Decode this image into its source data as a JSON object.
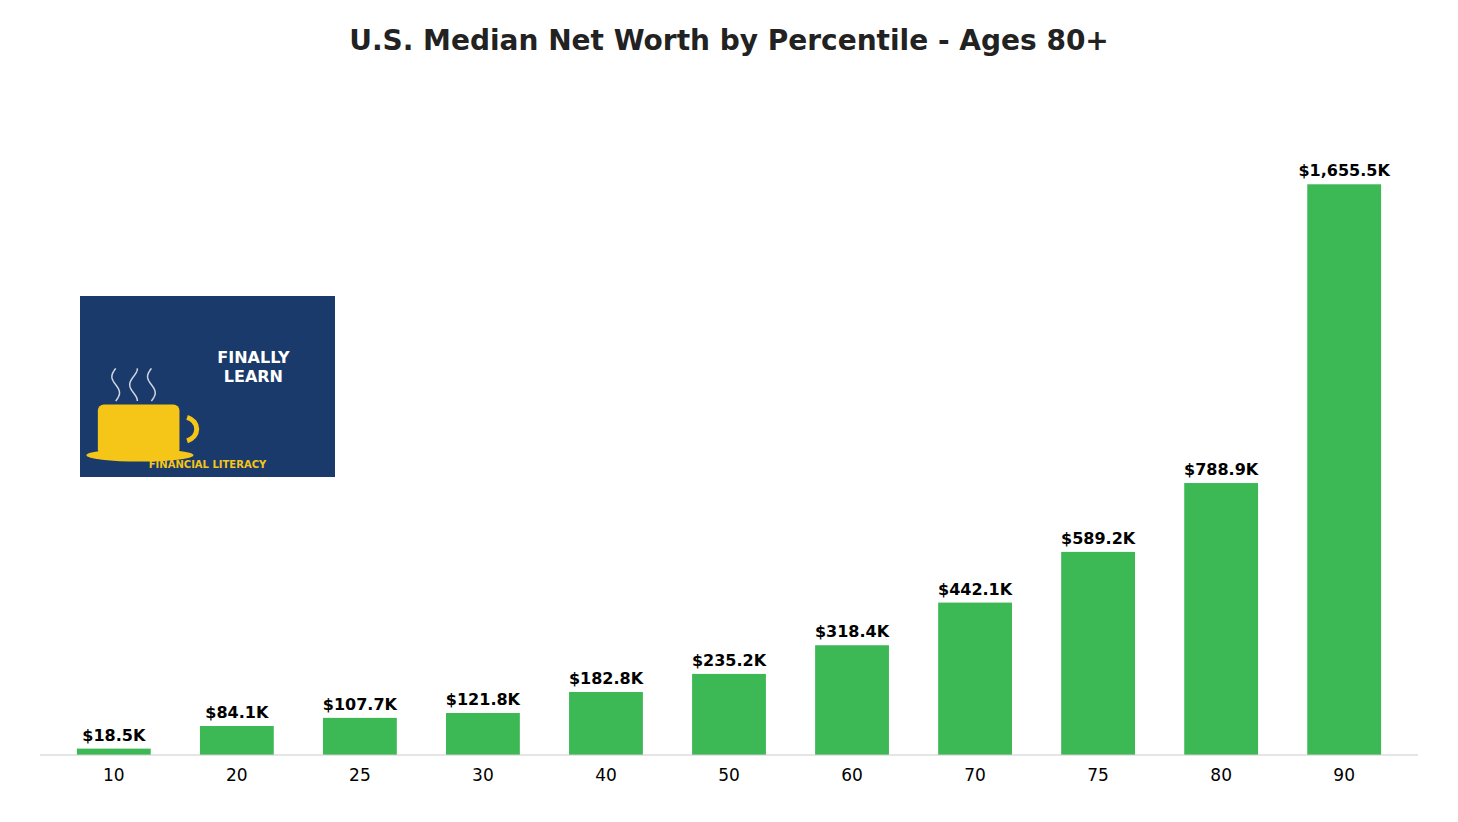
{
  "chart_data": {
    "type": "bar",
    "title": "U.S. Median Net Worth by Percentile - Ages 80+",
    "categories": [
      "10",
      "20",
      "25",
      "30",
      "40",
      "50",
      "60",
      "70",
      "75",
      "80",
      "90"
    ],
    "values": [
      18.5,
      84.1,
      107.7,
      121.8,
      182.8,
      235.2,
      318.4,
      442.1,
      589.2,
      788.9,
      1655.5
    ],
    "value_labels": [
      "$18.5K",
      "$84.1K",
      "$107.7K",
      "$121.8K",
      "$182.8K",
      "$235.2K",
      "$318.4K",
      "$442.1K",
      "$589.2K",
      "$788.9K",
      "$1,655.5K"
    ],
    "data_labels": true,
    "color": "#3cb855",
    "ylim": [
      0,
      1900
    ],
    "grid": false,
    "tick_labels": "x",
    "annotations": [
      "FINALLY\nLEARN",
      "FINANCIAL LITERACY"
    ]
  }
}
